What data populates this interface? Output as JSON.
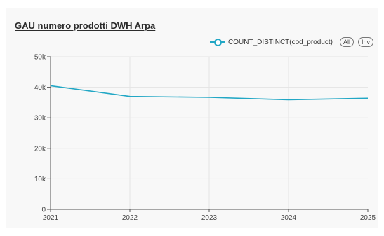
{
  "chart_data": {
    "type": "line",
    "title": "GAU numero prodotti DWH Arpa",
    "x": [
      "2021",
      "2022",
      "2023",
      "2024",
      "2025"
    ],
    "series": [
      {
        "name": "COUNT_DISTINCT(cod_product)",
        "color": "#22a7c5",
        "values": [
          40500,
          37000,
          36700,
          35900,
          36400
        ]
      }
    ],
    "ylim": [
      0,
      50000
    ],
    "yticks": [
      0,
      10000,
      20000,
      30000,
      40000,
      50000
    ],
    "ytick_labels": [
      "0",
      "10k",
      "20k",
      "30k",
      "40k",
      "50k"
    ],
    "grid": true,
    "legend_position": "top-right"
  },
  "legend_controls": {
    "all_label": "All",
    "inv_label": "Inv"
  }
}
